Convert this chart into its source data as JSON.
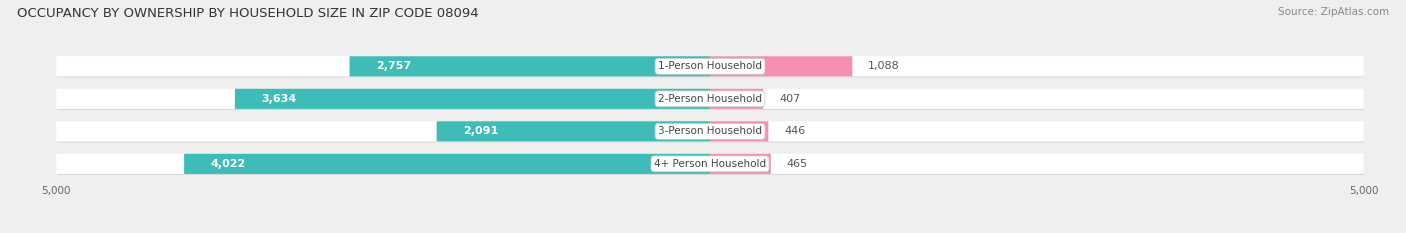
{
  "title": "OCCUPANCY BY OWNERSHIP BY HOUSEHOLD SIZE IN ZIP CODE 08094",
  "source": "Source: ZipAtlas.com",
  "categories": [
    "1-Person Household",
    "2-Person Household",
    "3-Person Household",
    "4+ Person Household"
  ],
  "owner_values": [
    2757,
    3634,
    2091,
    4022
  ],
  "renter_values": [
    1088,
    407,
    446,
    465
  ],
  "owner_color": "#3dbcb8",
  "renter_color": "#f48fb1",
  "owner_color_dark": "#2a9d99",
  "background_color": "#efefef",
  "bar_background": "#ffffff",
  "bar_shadow": "#d8d8d8",
  "axis_max": 5000,
  "title_fontsize": 9.5,
  "source_fontsize": 7.5,
  "label_fontsize": 8,
  "cat_fontsize": 7.5,
  "bar_height": 0.62,
  "owner_label_threshold": 600
}
